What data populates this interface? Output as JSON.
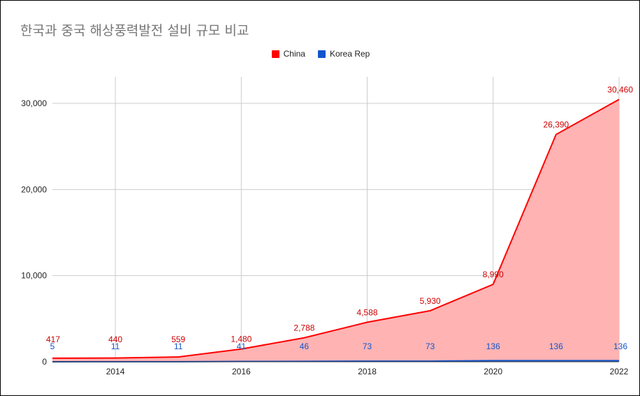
{
  "chart_data": {
    "type": "area",
    "title": "한국과 중국 해상풍력발전 설비 규모 비교",
    "x": [
      2013,
      2014,
      2015,
      2016,
      2017,
      2018,
      2019,
      2020,
      2021,
      2022
    ],
    "x_ticks": [
      "2014",
      "2016",
      "2018",
      "2020",
      "2022"
    ],
    "x_tick_values": [
      2014,
      2016,
      2018,
      2020,
      2022
    ],
    "y_ticks": [
      "0",
      "10,000",
      "20,000",
      "30,000"
    ],
    "y_tick_values": [
      0,
      10000,
      20000,
      30000
    ],
    "xlim": [
      2013,
      2022
    ],
    "ylim": [
      0,
      32000
    ],
    "grid": true,
    "legend_position": "top-center",
    "series": [
      {
        "name": "China",
        "color": "#ff0000",
        "fill": "#ffb3b3",
        "values": [
          417,
          440,
          559,
          1480,
          2788,
          4588,
          5930,
          8990,
          26390,
          30460
        ],
        "labels": [
          "417",
          "440",
          "559",
          "1,480",
          "2,788",
          "4,588",
          "5,930",
          "8,990",
          "26,390",
          "30,460"
        ]
      },
      {
        "name": "Korea Rep",
        "color": "#1155cc",
        "fill": "#7fa3e6",
        "values": [
          5,
          11,
          11,
          41,
          46,
          73,
          73,
          136,
          136,
          136
        ],
        "labels": [
          "5",
          "11",
          "11",
          "41",
          "46",
          "73",
          "73",
          "136",
          "136",
          "136"
        ]
      }
    ]
  }
}
